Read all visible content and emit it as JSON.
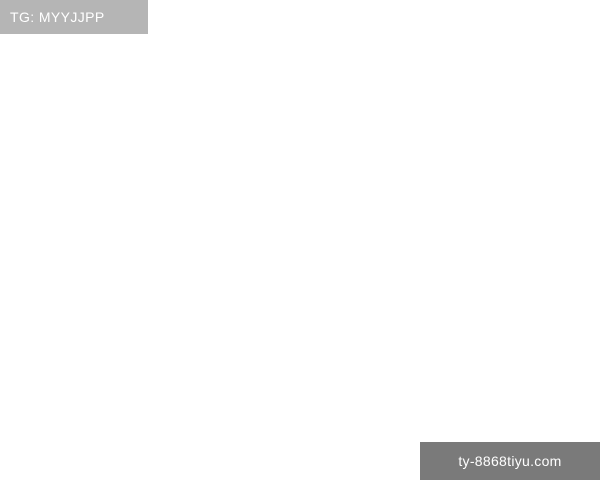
{
  "header": {
    "text": "TG: MYYJJPP"
  },
  "footer": {
    "text": "ty-8868tiyu.com"
  },
  "colors": {
    "header_bg": "#b5b5b5",
    "footer_bg": "#7a7a7a",
    "banner_text": "#ffffff"
  }
}
